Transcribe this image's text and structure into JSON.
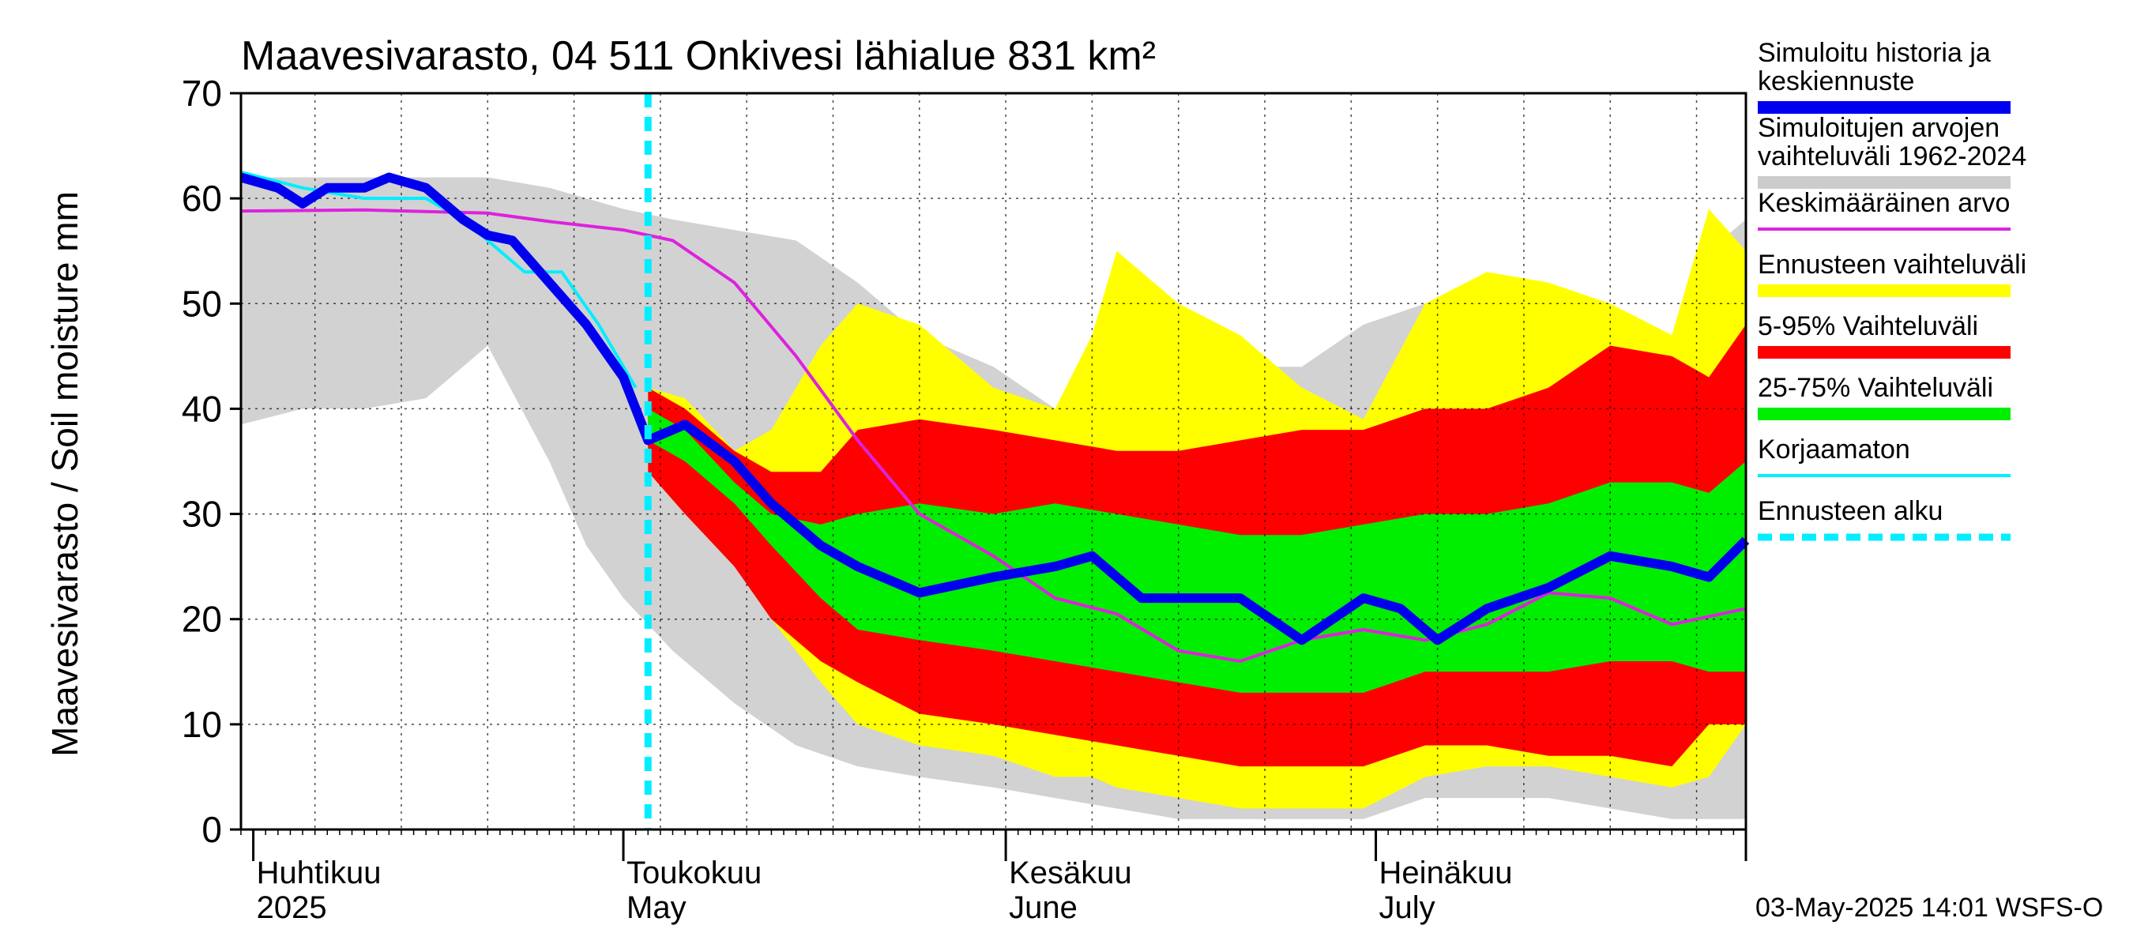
{
  "chart_data": {
    "type": "area",
    "title": "Maavesivarasto, 04 511 Onkivesi lähialue 831 km²",
    "ylabel": "Maavesivarasto / Soil moisture   mm",
    "xlabel": "",
    "ylim": [
      0,
      70
    ],
    "yticks": [
      "0",
      "10",
      "20",
      "30",
      "40",
      "50",
      "60",
      "70"
    ],
    "xlim": [
      "2025-03-31",
      "2025-07-31"
    ],
    "grid": true,
    "legend_position": "right",
    "forecast_start": "2025-05-03",
    "months": [
      {
        "fi": "Huhtikuu",
        "en": "2025",
        "date": "2025-04-01"
      },
      {
        "fi": "Toukokuu",
        "en": "May",
        "date": "2025-05-01"
      },
      {
        "fi": "Kesäkuu",
        "en": "June",
        "date": "2025-06-01"
      },
      {
        "fi": "Heinäkuu",
        "en": "July",
        "date": "2025-07-01"
      }
    ],
    "legend": [
      {
        "label": "Simuloitu historia ja",
        "label2": "keskiennuste",
        "color": "#0000ee",
        "style": "thick"
      },
      {
        "label": "Simuloitujen arvojen",
        "label2": "vaihteluväli 1962-2024",
        "color": "#cccccc",
        "style": "thick"
      },
      {
        "label": "Keskimääräinen arvo",
        "label2": "",
        "color": "#dd22dd",
        "style": "thin"
      },
      {
        "label": "Ennusteen vaihteluväli",
        "label2": "",
        "color": "#ffff00",
        "style": "thick"
      },
      {
        "label": "5-95% Vaihteluväli",
        "label2": "",
        "color": "#ff0000",
        "style": "thick"
      },
      {
        "label": "25-75% Vaihteluväli",
        "label2": "",
        "color": "#00ee00",
        "style": "thick"
      },
      {
        "label": "Korjaamaton",
        "label2": "",
        "color": "#00eeff",
        "style": "thin"
      },
      {
        "label": "Ennusteen alku",
        "label2": "",
        "color": "#00eeff",
        "style": "dashed"
      }
    ],
    "history_range": {
      "x": [
        "2025-03-31",
        "2025-04-05",
        "2025-04-10",
        "2025-04-15",
        "2025-04-20",
        "2025-04-25",
        "2025-04-28",
        "2025-05-01",
        "2025-05-05",
        "2025-05-10",
        "2025-05-15",
        "2025-05-20",
        "2025-05-25",
        "2025-05-31",
        "2025-06-05",
        "2025-06-10",
        "2025-06-15",
        "2025-06-20",
        "2025-06-25",
        "2025-06-30",
        "2025-07-05",
        "2025-07-10",
        "2025-07-15",
        "2025-07-20",
        "2025-07-25",
        "2025-07-28",
        "2025-07-31"
      ],
      "low": [
        38.5,
        40,
        40,
        41,
        46,
        35,
        27,
        22,
        17,
        12,
        8,
        6,
        5,
        4,
        3,
        2,
        1,
        1,
        1,
        1,
        3,
        3,
        3,
        2,
        1,
        1,
        1
      ],
      "high": [
        62,
        62,
        62,
        62,
        62,
        61,
        60,
        59,
        58,
        57,
        56,
        52,
        47,
        44,
        40,
        41,
        42,
        44,
        44,
        48,
        50,
        51,
        50,
        48,
        46,
        55,
        58
      ]
    },
    "forecast_range": {
      "x": [
        "2025-05-03",
        "2025-05-06",
        "2025-05-10",
        "2025-05-13",
        "2025-05-17",
        "2025-05-20",
        "2025-05-25",
        "2025-05-31",
        "2025-06-05",
        "2025-06-08",
        "2025-06-10",
        "2025-06-15",
        "2025-06-20",
        "2025-06-25",
        "2025-06-30",
        "2025-07-05",
        "2025-07-10",
        "2025-07-15",
        "2025-07-20",
        "2025-07-25",
        "2025-07-28",
        "2025-07-31"
      ],
      "low": [
        36,
        32,
        26,
        20,
        14,
        10,
        8,
        7,
        5,
        5,
        4,
        3,
        2,
        2,
        2,
        5,
        6,
        6,
        5,
        4,
        5,
        10
      ],
      "high": [
        42,
        41,
        36,
        38,
        46,
        50,
        48,
        42,
        40,
        47,
        55,
        50,
        47,
        42,
        39,
        50,
        53,
        52,
        50,
        47,
        59,
        55
      ]
    },
    "p5_95": {
      "x": [
        "2025-05-03",
        "2025-05-06",
        "2025-05-10",
        "2025-05-13",
        "2025-05-17",
        "2025-05-20",
        "2025-05-25",
        "2025-05-31",
        "2025-06-05",
        "2025-06-10",
        "2025-06-15",
        "2025-06-20",
        "2025-06-25",
        "2025-06-30",
        "2025-07-05",
        "2025-07-10",
        "2025-07-15",
        "2025-07-20",
        "2025-07-25",
        "2025-07-28",
        "2025-07-31"
      ],
      "low": [
        34,
        30,
        25,
        20,
        16,
        14,
        11,
        10,
        9,
        8,
        7,
        6,
        6,
        6,
        8,
        8,
        7,
        7,
        6,
        10,
        10
      ],
      "high": [
        42,
        40,
        36,
        34,
        34,
        38,
        39,
        38,
        37,
        36,
        36,
        37,
        38,
        38,
        40,
        40,
        42,
        46,
        45,
        43,
        48
      ]
    },
    "p25_75": {
      "x": [
        "2025-05-03",
        "2025-05-06",
        "2025-05-10",
        "2025-05-13",
        "2025-05-17",
        "2025-05-20",
        "2025-05-25",
        "2025-05-31",
        "2025-06-05",
        "2025-06-10",
        "2025-06-15",
        "2025-06-20",
        "2025-06-25",
        "2025-06-30",
        "2025-07-05",
        "2025-07-10",
        "2025-07-15",
        "2025-07-20",
        "2025-07-25",
        "2025-07-28",
        "2025-07-31"
      ],
      "low": [
        37,
        35,
        31,
        27,
        22,
        19,
        18,
        17,
        16,
        15,
        14,
        13,
        13,
        13,
        15,
        15,
        15,
        16,
        16,
        15,
        15
      ],
      "high": [
        40,
        38,
        33,
        30,
        29,
        30,
        31,
        30,
        31,
        30,
        29,
        28,
        28,
        29,
        30,
        30,
        31,
        33,
        33,
        32,
        35
      ]
    },
    "median": {
      "x": [
        "2025-03-31",
        "2025-04-03",
        "2025-04-05",
        "2025-04-07",
        "2025-04-10",
        "2025-04-12",
        "2025-04-15",
        "2025-04-18",
        "2025-04-20",
        "2025-04-22",
        "2025-04-25",
        "2025-04-28",
        "2025-05-01",
        "2025-05-03",
        "2025-05-06",
        "2025-05-10",
        "2025-05-13",
        "2025-05-17",
        "2025-05-20",
        "2025-05-25",
        "2025-05-31",
        "2025-06-05",
        "2025-06-08",
        "2025-06-12",
        "2025-06-16",
        "2025-06-20",
        "2025-06-25",
        "2025-06-30",
        "2025-07-03",
        "2025-07-06",
        "2025-07-10",
        "2025-07-15",
        "2025-07-20",
        "2025-07-25",
        "2025-07-28",
        "2025-07-31"
      ],
      "values": [
        62,
        61,
        59.5,
        61,
        61,
        62,
        61,
        58,
        56.5,
        56,
        52,
        48,
        43,
        37,
        38.5,
        35,
        31,
        27,
        25,
        22.5,
        24,
        25,
        26,
        22,
        22,
        22,
        18,
        22,
        21,
        18,
        21,
        23,
        26,
        25,
        24,
        27.5
      ]
    },
    "mean": {
      "x": [
        "2025-03-31",
        "2025-04-10",
        "2025-04-20",
        "2025-04-25",
        "2025-05-01",
        "2025-05-05",
        "2025-05-10",
        "2025-05-15",
        "2025-05-20",
        "2025-05-25",
        "2025-05-31",
        "2025-06-05",
        "2025-06-10",
        "2025-06-15",
        "2025-06-20",
        "2025-06-25",
        "2025-06-30",
        "2025-07-05",
        "2025-07-10",
        "2025-07-15",
        "2025-07-20",
        "2025-07-25",
        "2025-07-31"
      ],
      "values": [
        58.8,
        58.9,
        58.6,
        57.8,
        57,
        56,
        52,
        45,
        37,
        30,
        26,
        22,
        20.5,
        17,
        16,
        18,
        19,
        18,
        19.5,
        22.5,
        22,
        19.5,
        21
      ]
    },
    "uncorrected": {
      "x": [
        "2025-03-31",
        "2025-04-05",
        "2025-04-10",
        "2025-04-15",
        "2025-04-18",
        "2025-04-20",
        "2025-04-23",
        "2025-04-26",
        "2025-04-29",
        "2025-05-02"
      ],
      "values": [
        62.5,
        61,
        60,
        60,
        58,
        56,
        53,
        53,
        48,
        42
      ]
    },
    "footer": "03-May-2025 14:01 WSFS-O"
  }
}
